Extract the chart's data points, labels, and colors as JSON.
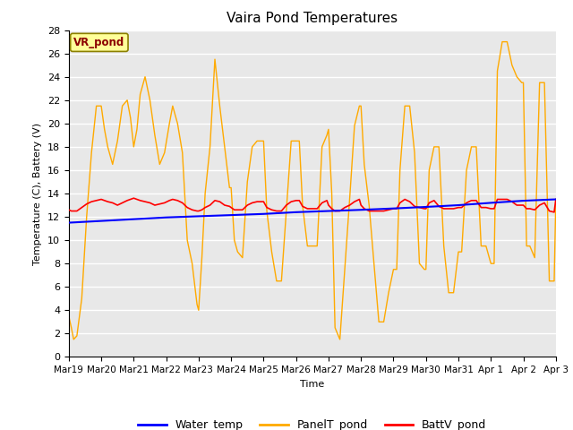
{
  "title": "Vaira Pond Temperatures",
  "xlabel": "Time",
  "ylabel": "Temperature (C), Battery (V)",
  "station_label": "VR_pond",
  "ylim": [
    0,
    28
  ],
  "bg_color": "#e8e8e8",
  "fig_color": "#ffffff",
  "legend": [
    {
      "label": "Water_temp",
      "color": "#0000ff"
    },
    {
      "label": "PanelT_pond",
      "color": "#ffaa00"
    },
    {
      "label": "BattV_pond",
      "color": "#ff0000"
    }
  ],
  "x_tick_labels": [
    "Mar 19",
    "Mar 20",
    "Mar 21",
    "Mar 22",
    "Mar 23",
    "Mar 24",
    "Mar 25",
    "Mar 26",
    "Mar 27",
    "Mar 28",
    "Mar 29",
    "Mar 30",
    "Mar 31",
    "Apr 1",
    "Apr 2",
    "Apr 3"
  ],
  "water_temp_x": [
    0,
    1,
    2,
    3,
    4,
    5,
    6,
    7,
    8,
    9,
    10,
    11,
    12,
    13,
    14,
    15
  ],
  "water_temp_y": [
    11.5,
    11.65,
    11.8,
    11.95,
    12.05,
    12.15,
    12.25,
    12.4,
    12.5,
    12.6,
    12.72,
    12.85,
    13.0,
    13.2,
    13.38,
    13.5
  ],
  "panel_temp_x": [
    0,
    0.08,
    0.15,
    0.25,
    0.4,
    0.55,
    0.7,
    0.85,
    1.0,
    1.1,
    1.2,
    1.35,
    1.5,
    1.65,
    1.8,
    1.9,
    2.0,
    2.1,
    2.2,
    2.35,
    2.5,
    2.65,
    2.8,
    2.95,
    3.1,
    3.2,
    3.35,
    3.5,
    3.65,
    3.8,
    3.95,
    4.0,
    4.1,
    4.2,
    4.35,
    4.5,
    4.65,
    4.8,
    4.95,
    5.0,
    5.1,
    5.2,
    5.35,
    5.5,
    5.65,
    5.8,
    5.95,
    6.0,
    6.1,
    6.25,
    6.4,
    6.55,
    6.7,
    6.85,
    7.0,
    7.1,
    7.2,
    7.35,
    7.5,
    7.65,
    7.8,
    7.95,
    8.0,
    8.1,
    8.2,
    8.35,
    8.5,
    8.65,
    8.8,
    8.95,
    9.0,
    9.1,
    9.25,
    9.4,
    9.55,
    9.7,
    9.85,
    10.0,
    10.1,
    10.2,
    10.35,
    10.5,
    10.65,
    10.8,
    10.95,
    11.0,
    11.1,
    11.25,
    11.4,
    11.55,
    11.7,
    11.85,
    12.0,
    12.1,
    12.25,
    12.4,
    12.55,
    12.7,
    12.85,
    13.0,
    13.1,
    13.2,
    13.35,
    13.5,
    13.65,
    13.8,
    13.95,
    14.0,
    14.1,
    14.2,
    14.35,
    14.5,
    14.65,
    14.8,
    14.95,
    15.0
  ],
  "panel_temp_y": [
    3.5,
    2.5,
    1.5,
    1.8,
    5.0,
    12.0,
    17.5,
    21.5,
    21.5,
    19.5,
    18.0,
    16.5,
    18.5,
    21.5,
    22.0,
    20.5,
    18.0,
    19.5,
    22.5,
    24.0,
    22.0,
    19.0,
    16.5,
    17.5,
    20.0,
    21.5,
    20.0,
    17.5,
    10.0,
    8.0,
    4.5,
    4.0,
    8.5,
    14.0,
    18.0,
    25.5,
    21.5,
    18.0,
    14.5,
    14.5,
    10.0,
    9.0,
    8.5,
    15.0,
    18.0,
    18.5,
    18.5,
    18.5,
    12.5,
    9.0,
    6.5,
    6.5,
    12.5,
    18.5,
    18.5,
    18.5,
    13.0,
    9.5,
    9.5,
    9.5,
    18.0,
    19.0,
    19.5,
    14.0,
    2.5,
    1.5,
    7.5,
    13.5,
    19.8,
    21.5,
    21.5,
    16.5,
    13.0,
    8.0,
    3.0,
    3.0,
    5.5,
    7.5,
    7.5,
    16.0,
    21.5,
    21.5,
    17.5,
    8.0,
    7.5,
    7.5,
    16.0,
    18.0,
    18.0,
    9.5,
    5.5,
    5.5,
    9.0,
    9.0,
    16.0,
    18.0,
    18.0,
    9.5,
    9.5,
    8.0,
    8.0,
    24.5,
    27.0,
    27.0,
    25.0,
    24.0,
    23.5,
    23.5,
    9.5,
    9.5,
    8.5,
    23.5,
    23.5,
    6.5,
    6.5,
    13.5
  ],
  "batt_pond_x": [
    0,
    0.08,
    0.15,
    0.25,
    0.4,
    0.55,
    0.7,
    0.85,
    1.0,
    1.1,
    1.2,
    1.35,
    1.5,
    1.65,
    1.8,
    1.9,
    2.0,
    2.1,
    2.2,
    2.35,
    2.5,
    2.65,
    2.8,
    2.95,
    3.1,
    3.2,
    3.35,
    3.5,
    3.65,
    3.8,
    3.95,
    4.0,
    4.1,
    4.2,
    4.35,
    4.5,
    4.65,
    4.8,
    4.95,
    5.0,
    5.1,
    5.2,
    5.35,
    5.5,
    5.65,
    5.8,
    5.95,
    6.0,
    6.1,
    6.25,
    6.4,
    6.55,
    6.7,
    6.85,
    7.0,
    7.1,
    7.2,
    7.35,
    7.5,
    7.65,
    7.8,
    7.95,
    8.0,
    8.1,
    8.2,
    8.35,
    8.5,
    8.65,
    8.8,
    8.95,
    9.0,
    9.1,
    9.25,
    9.4,
    9.55,
    9.7,
    9.85,
    10.0,
    10.1,
    10.2,
    10.35,
    10.5,
    10.65,
    10.8,
    10.95,
    11.0,
    11.1,
    11.25,
    11.4,
    11.55,
    11.7,
    11.85,
    12.0,
    12.1,
    12.25,
    12.4,
    12.55,
    12.7,
    12.85,
    13.0,
    13.1,
    13.2,
    13.35,
    13.5,
    13.65,
    13.8,
    13.95,
    14.0,
    14.1,
    14.2,
    14.35,
    14.5,
    14.65,
    14.8,
    14.95,
    15.0
  ],
  "batt_pond_y": [
    12.6,
    12.5,
    12.5,
    12.5,
    12.8,
    13.1,
    13.3,
    13.4,
    13.5,
    13.4,
    13.3,
    13.2,
    13.0,
    13.2,
    13.4,
    13.5,
    13.6,
    13.5,
    13.4,
    13.3,
    13.2,
    13.0,
    13.1,
    13.2,
    13.4,
    13.5,
    13.4,
    13.2,
    12.8,
    12.6,
    12.5,
    12.5,
    12.6,
    12.8,
    13.0,
    13.4,
    13.3,
    13.0,
    12.9,
    12.8,
    12.6,
    12.6,
    12.6,
    13.0,
    13.2,
    13.3,
    13.3,
    13.3,
    12.8,
    12.6,
    12.5,
    12.5,
    13.0,
    13.3,
    13.4,
    13.4,
    12.9,
    12.7,
    12.7,
    12.7,
    13.2,
    13.4,
    13.0,
    12.7,
    12.5,
    12.5,
    12.8,
    13.0,
    13.3,
    13.5,
    13.0,
    12.7,
    12.5,
    12.5,
    12.5,
    12.5,
    12.6,
    12.7,
    12.7,
    13.2,
    13.5,
    13.3,
    12.9,
    12.8,
    12.7,
    12.7,
    13.2,
    13.4,
    12.9,
    12.7,
    12.7,
    12.7,
    12.8,
    12.8,
    13.2,
    13.4,
    13.4,
    12.8,
    12.8,
    12.7,
    12.7,
    13.5,
    13.5,
    13.5,
    13.3,
    13.0,
    13.0,
    13.0,
    12.7,
    12.7,
    12.6,
    13.0,
    13.2,
    12.5,
    12.4,
    13.5
  ]
}
